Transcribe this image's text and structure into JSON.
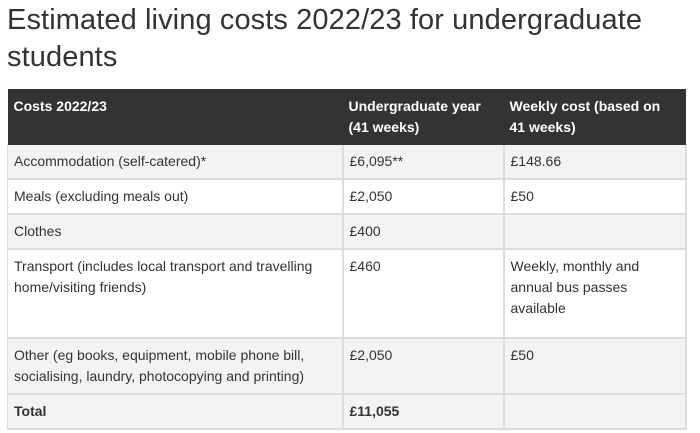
{
  "page": {
    "title": "Estimated living costs 2022/23 for undergraduate students"
  },
  "table": {
    "headers": [
      "Costs 2022/23",
      "Undergraduate year (41 weeks)",
      "Weekly cost (based on 41 weeks)"
    ],
    "rows": [
      {
        "cost": "Accommodation (self-catered)*",
        "year": "£6,095**",
        "weekly": "£148.66"
      },
      {
        "cost": "Meals (excluding meals out)",
        "year": "£2,050",
        "weekly": "£50"
      },
      {
        "cost": "Clothes",
        "year": "£400",
        "weekly": ""
      },
      {
        "cost": "Transport (includes local transport and travelling home/visiting friends)",
        "year": "£460",
        "weekly": "Weekly, monthly and annual bus passes available"
      },
      {
        "cost": "Other (eg books, equipment, mobile phone bill, socialising, laundry, photocopying and printing)",
        "year": "£2,050",
        "weekly": "£50"
      }
    ],
    "total": {
      "cost": "Total",
      "year": "£11,055",
      "weekly": ""
    }
  }
}
